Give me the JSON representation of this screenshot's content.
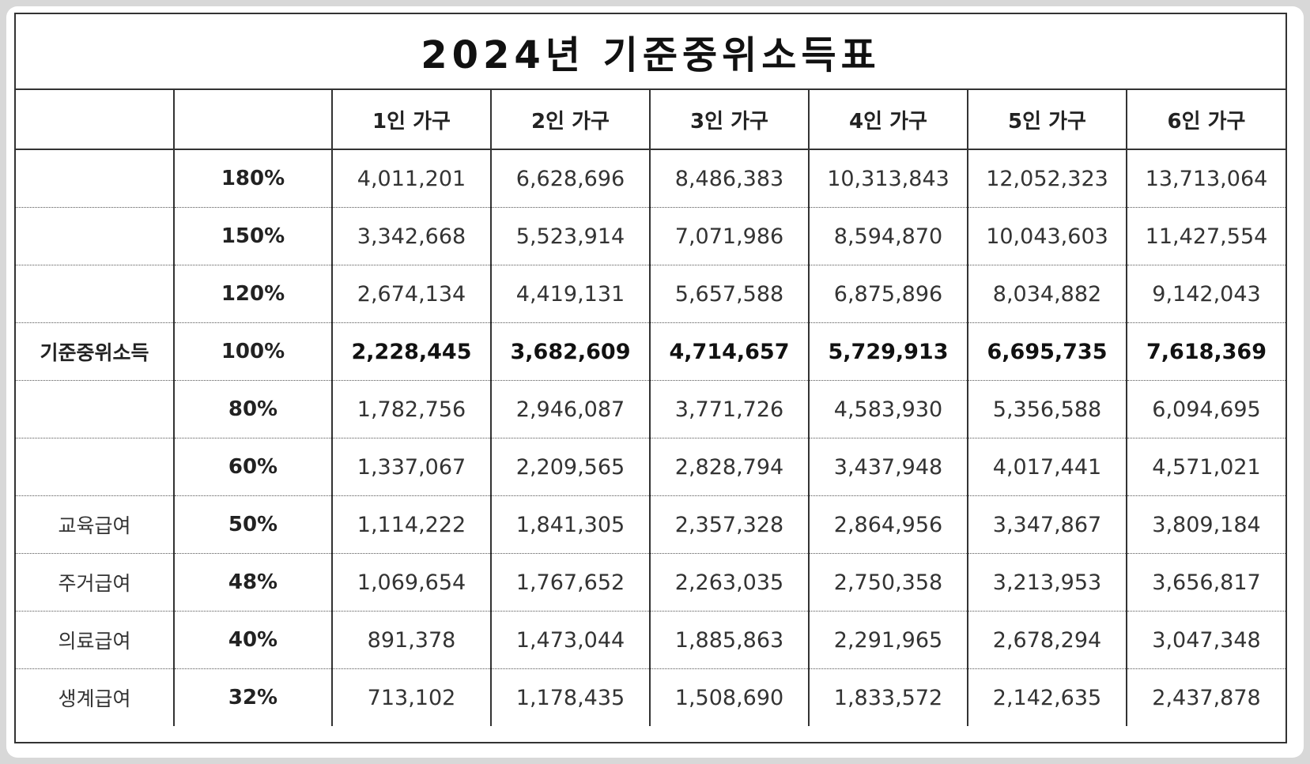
{
  "title": "2024년 기준중위소득표",
  "header": {
    "corner_label": "",
    "corner_pct": "",
    "columns": [
      "1인 가구",
      "2인 가구",
      "3인 가구",
      "4인 가구",
      "5인 가구",
      "6인 가구"
    ]
  },
  "rows": [
    {
      "label": "",
      "pct": "180%",
      "values": [
        "4,011,201",
        "6,628,696",
        "8,486,383",
        "10,313,843",
        "12,052,323",
        "13,713,064"
      ]
    },
    {
      "label": "",
      "pct": "150%",
      "values": [
        "3,342,668",
        "5,523,914",
        "7,071,986",
        "8,594,870",
        "10,043,603",
        "11,427,554"
      ]
    },
    {
      "label": "",
      "pct": "120%",
      "values": [
        "2,674,134",
        "4,419,131",
        "5,657,588",
        "6,875,896",
        "8,034,882",
        "9,142,043"
      ]
    },
    {
      "label": "기준중위소득",
      "pct": "100%",
      "values": [
        "2,228,445",
        "3,682,609",
        "4,714,657",
        "5,729,913",
        "6,695,735",
        "7,618,369"
      ]
    },
    {
      "label": "",
      "pct": "80%",
      "values": [
        "1,782,756",
        "2,946,087",
        "3,771,726",
        "4,583,930",
        "5,356,588",
        "6,094,695"
      ]
    },
    {
      "label": "",
      "pct": "60%",
      "values": [
        "1,337,067",
        "2,209,565",
        "2,828,794",
        "3,437,948",
        "4,017,441",
        "4,571,021"
      ]
    },
    {
      "label": "교육급여",
      "pct": "50%",
      "values": [
        "1,114,222",
        "1,841,305",
        "2,357,328",
        "2,864,956",
        "3,347,867",
        "3,809,184"
      ]
    },
    {
      "label": "주거급여",
      "pct": "48%",
      "values": [
        "1,069,654",
        "1,767,652",
        "2,263,035",
        "2,750,358",
        "3,213,953",
        "3,656,817"
      ]
    },
    {
      "label": "의료급여",
      "pct": "40%",
      "values": [
        "891,378",
        "1,473,044",
        "1,885,863",
        "2,291,965",
        "2,678,294",
        "3,047,348"
      ]
    },
    {
      "label": "생계급여",
      "pct": "32%",
      "values": [
        "713,102",
        "1,178,435",
        "1,508,690",
        "1,833,572",
        "2,142,635",
        "2,437,878"
      ]
    }
  ],
  "emphasis_row_pct": "100%"
}
